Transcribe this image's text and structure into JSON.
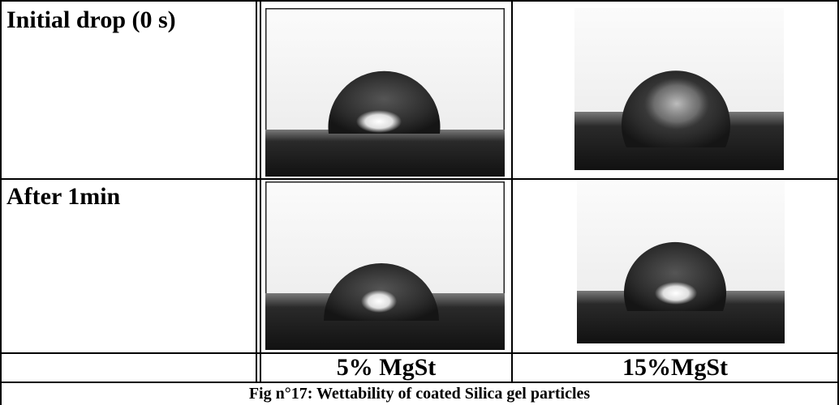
{
  "rows": [
    {
      "label": "Initial drop (0 s)"
    },
    {
      "label": "After 1min"
    }
  ],
  "columns": [
    "5% MgSt",
    "15%MgSt"
  ],
  "caption": "Fig n°17: Wettability of coated Silica gel particles",
  "images": [
    {
      "name": "droplet-5pct-initial"
    },
    {
      "name": "droplet-15pct-initial"
    },
    {
      "name": "droplet-5pct-1min"
    },
    {
      "name": "droplet-15pct-1min"
    }
  ]
}
